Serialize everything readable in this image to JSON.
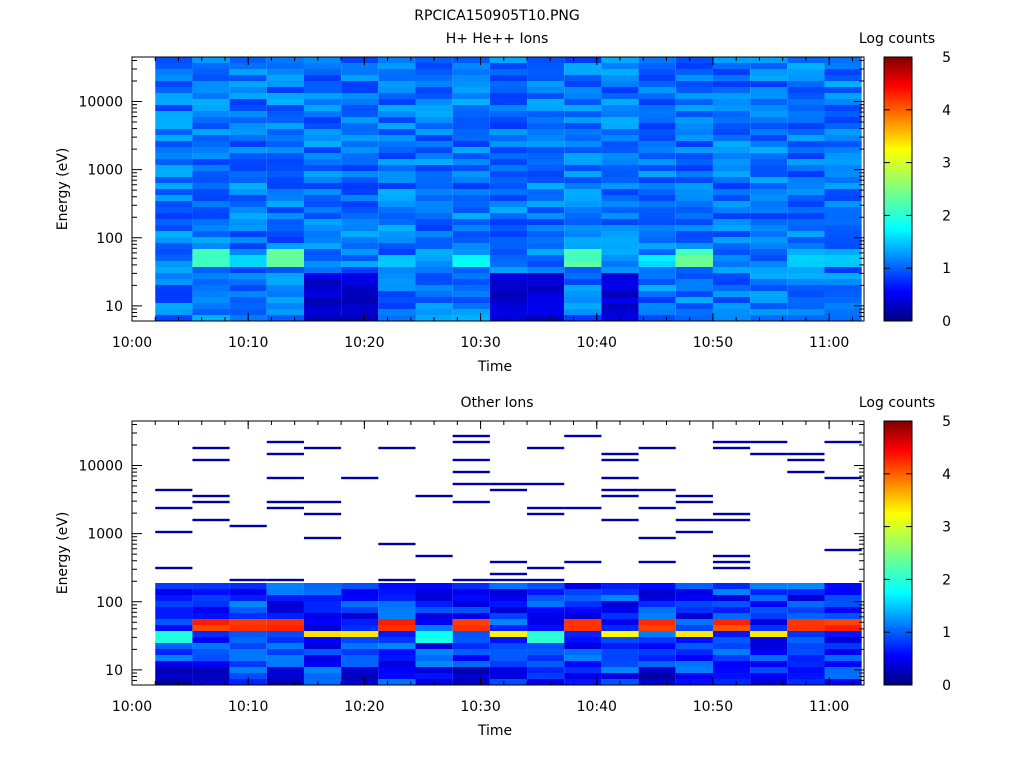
{
  "figure_title": "RPCICA150905T10.PNG",
  "chart_data": [
    {
      "type": "heatmap",
      "title": "H+ He++ Ions",
      "xlabel": "Time",
      "ylabel": "Energy (eV)",
      "colorbar_label": "Log counts",
      "x_range": [
        "10:00",
        "11:03"
      ],
      "x_ticks": [
        "10:00",
        "10:10",
        "10:20",
        "10:30",
        "10:40",
        "10:50",
        "11:00"
      ],
      "y_scale": "log",
      "y_range": [
        6,
        45000
      ],
      "y_ticks": [
        "10",
        "100",
        "1000",
        "10000"
      ],
      "colorbar_range": [
        0,
        5
      ],
      "colorbar_ticks": [
        "0",
        "1",
        "2",
        "3",
        "4",
        "5"
      ],
      "data_start": "10:02",
      "column_width_minutes": 3.2,
      "columns": 19,
      "rows": 44,
      "e_min": 6,
      "e_max": 45000,
      "background_level": 1.2,
      "features": [
        {
          "energy": [
            40,
            65
          ],
          "columns": [
            1,
            3,
            11,
            14
          ],
          "level": 2.3
        },
        {
          "energy": [
            40,
            55
          ],
          "columns": [
            8
          ],
          "level": 2.0
        },
        {
          "energy": [
            40,
            55
          ],
          "columns": [
            2,
            6,
            13,
            17,
            18
          ],
          "level": 1.7
        },
        {
          "energy": [
            6,
            30
          ],
          "columns": [
            4,
            5,
            9,
            10,
            12
          ],
          "level": 0.4
        }
      ]
    },
    {
      "type": "heatmap",
      "title": "Other Ions",
      "xlabel": "Time",
      "ylabel": "Energy (eV)",
      "colorbar_label": "Log counts",
      "x_range": [
        "10:00",
        "11:03"
      ],
      "x_ticks": [
        "10:00",
        "10:10",
        "10:20",
        "10:30",
        "10:40",
        "10:50",
        "11:00"
      ],
      "y_scale": "log",
      "y_range": [
        6,
        45000
      ],
      "y_ticks": [
        "10",
        "100",
        "1000",
        "10000"
      ],
      "colorbar_range": [
        0,
        5
      ],
      "colorbar_ticks": [
        "0",
        "1",
        "2",
        "3",
        "4",
        "5"
      ],
      "data_start": "10:02",
      "column_width_minutes": 3.2,
      "columns": 19,
      "rows": 44,
      "e_min": 6,
      "e_max": 45000,
      "fill_below_energy": 200,
      "sparse_line_level": 0.2,
      "features": [
        {
          "energy": [
            35,
            55
          ],
          "columns": [
            1,
            2,
            3,
            6,
            8,
            11,
            13,
            15,
            17,
            18
          ],
          "level": 4.1
        },
        {
          "energy": [
            28,
            40
          ],
          "columns": [
            4,
            5,
            9,
            12,
            14,
            16
          ],
          "level": 3.2
        },
        {
          "energy": [
            25,
            35
          ],
          "columns": [
            0,
            7,
            10
          ],
          "level": 2.0
        },
        {
          "energy": [
            6,
            12
          ],
          "columns": [
            0,
            1,
            3,
            5,
            8,
            13
          ],
          "level": 0.3
        }
      ]
    }
  ]
}
